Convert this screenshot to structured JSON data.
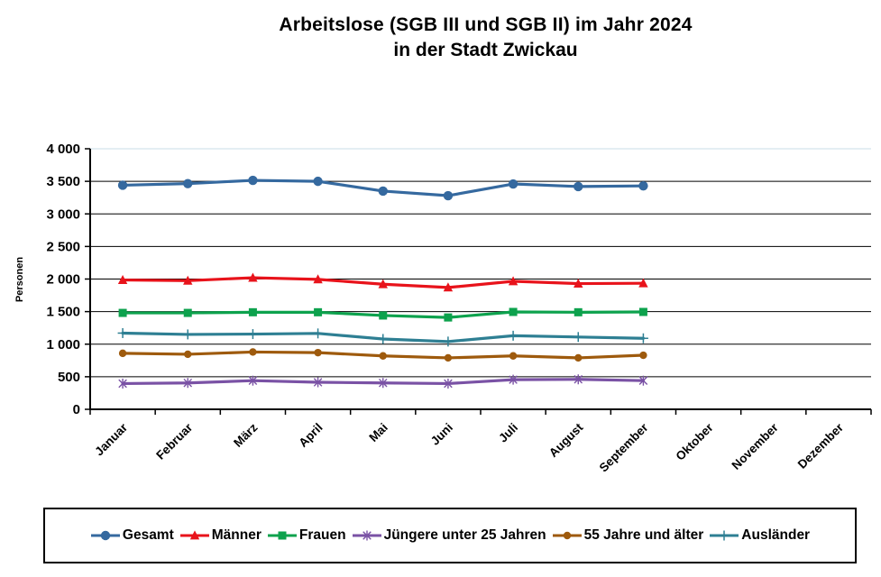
{
  "chart_data": {
    "type": "line",
    "title": "Arbeitslose (SGB III und SGB II) im Jahr 2024",
    "subtitle": "in der Stadt Zwickau",
    "ylabel": "Personen",
    "categories": [
      "Januar",
      "Februar",
      "März",
      "April",
      "Mai",
      "Juni",
      "Juli",
      "August",
      "September",
      "Oktober",
      "November",
      "Dezember"
    ],
    "y_tick_labels": [
      "0",
      "500",
      "1 000",
      "1 500",
      "2 000",
      "2 500",
      "3 000",
      "3 500",
      "4 000"
    ],
    "ylim": [
      0,
      4000
    ],
    "y_step": 500,
    "grid": "horizontal-major",
    "legend_position": "bottom",
    "x_label_rotation_deg": 45,
    "data_months_present": 9,
    "series": [
      {
        "name": "Gesamt",
        "marker": "circle",
        "color": "#35699F",
        "values": [
          3440,
          3465,
          3515,
          3500,
          3350,
          3280,
          3460,
          3420,
          3430
        ]
      },
      {
        "name": "Männer",
        "marker": "triangle",
        "color": "#E8131B",
        "values": [
          1985,
          1975,
          2020,
          1995,
          1920,
          1870,
          1965,
          1930,
          1935
        ]
      },
      {
        "name": "Frauen",
        "marker": "square",
        "color": "#0DA24D",
        "values": [
          1480,
          1480,
          1490,
          1490,
          1440,
          1410,
          1495,
          1490,
          1495
        ]
      },
      {
        "name": "Jüngere unter 25 Jahren",
        "marker": "asterisk",
        "color": "#7A52A5",
        "values": [
          395,
          405,
          440,
          415,
          405,
          395,
          455,
          460,
          440
        ]
      },
      {
        "name": "55 Jahre und älter",
        "marker": "dot",
        "color": "#9E5A0D",
        "values": [
          860,
          845,
          880,
          870,
          820,
          790,
          820,
          790,
          830
        ]
      },
      {
        "name": "Ausländer",
        "marker": "plus",
        "color": "#2E7F93",
        "values": [
          1170,
          1150,
          1155,
          1165,
          1080,
          1040,
          1130,
          1110,
          1090
        ]
      }
    ],
    "colors": {
      "background": "#FFFFFF",
      "axis": "#000000",
      "gridline": "#000000",
      "gridline_top": "#C9DCE7",
      "text": "#000000"
    }
  }
}
